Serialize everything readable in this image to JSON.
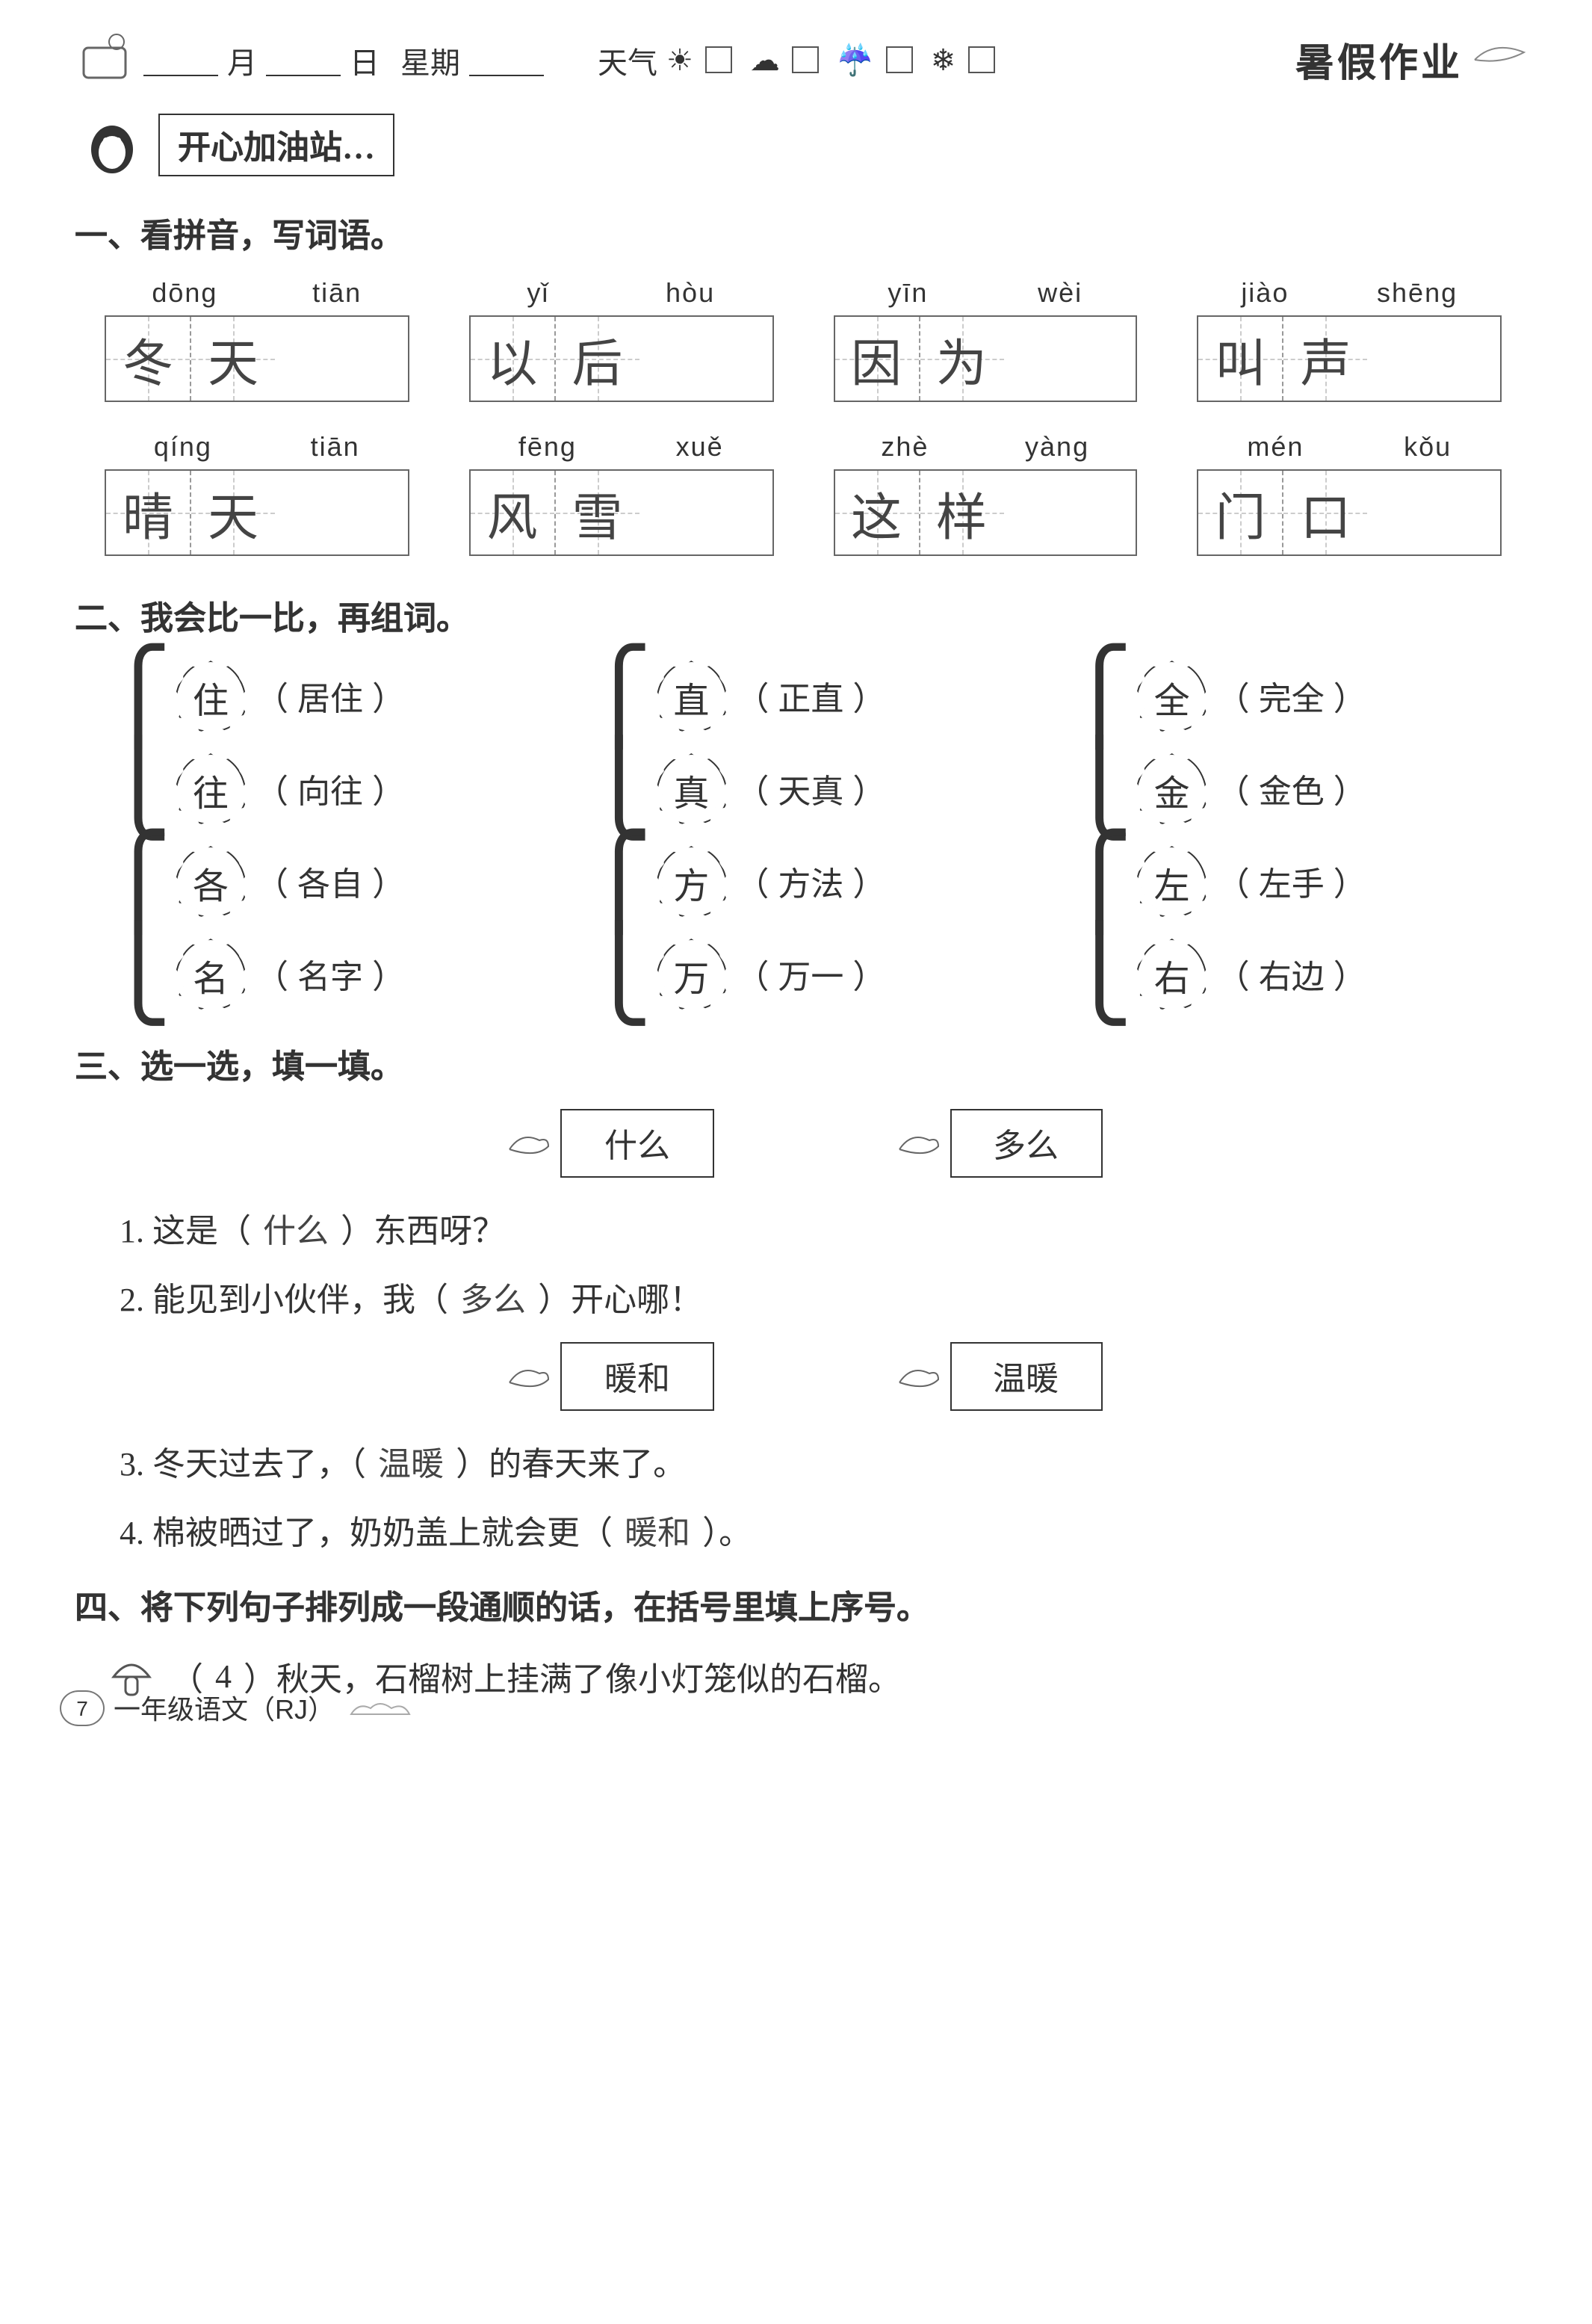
{
  "header": {
    "month_label": "月",
    "day_label": "日",
    "week_label": "星期",
    "weather_label": "天气",
    "title_badge": "暑假作业"
  },
  "section_header": "开心加油站…",
  "s1": {
    "title": "一、看拼音，写词语。",
    "items": [
      {
        "pinyin": [
          "dōng",
          "tiān"
        ],
        "chars": [
          "冬",
          "天"
        ]
      },
      {
        "pinyin": [
          "yǐ",
          "hòu"
        ],
        "chars": [
          "以",
          "后"
        ]
      },
      {
        "pinyin": [
          "yīn",
          "wèi"
        ],
        "chars": [
          "因",
          "为"
        ]
      },
      {
        "pinyin": [
          "jiào",
          "shēng"
        ],
        "chars": [
          "叫",
          "声"
        ]
      },
      {
        "pinyin": [
          "qíng",
          "tiān"
        ],
        "chars": [
          "晴",
          "天"
        ]
      },
      {
        "pinyin": [
          "fēng",
          "xuě"
        ],
        "chars": [
          "风",
          "雪"
        ]
      },
      {
        "pinyin": [
          "zhè",
          "yàng"
        ],
        "chars": [
          "这",
          "样"
        ]
      },
      {
        "pinyin": [
          "mén",
          "kǒu"
        ],
        "chars": [
          "门",
          "口"
        ]
      }
    ]
  },
  "s2": {
    "title": "二、我会比一比，再组词。",
    "pairs": [
      {
        "char": "住",
        "word": "居住"
      },
      {
        "char": "直",
        "word": "正直"
      },
      {
        "char": "全",
        "word": "完全"
      },
      {
        "char": "往",
        "word": "向往"
      },
      {
        "char": "真",
        "word": "天真"
      },
      {
        "char": "金",
        "word": "金色"
      },
      {
        "char": "各",
        "word": "各自"
      },
      {
        "char": "方",
        "word": "方法"
      },
      {
        "char": "左",
        "word": "左手"
      },
      {
        "char": "名",
        "word": "名字"
      },
      {
        "char": "万",
        "word": "万一"
      },
      {
        "char": "右",
        "word": "右边"
      }
    ]
  },
  "s3": {
    "title": "三、选一选，填一填。",
    "choices1": [
      "什么",
      "多么"
    ],
    "q1": {
      "pre": "1. 这是（",
      "ans": "什么",
      "post": "）东西呀？"
    },
    "q2": {
      "pre": "2. 能见到小伙伴，我（",
      "ans": "多么",
      "post": "）开心哪！"
    },
    "choices2": [
      "暖和",
      "温暖"
    ],
    "q3": {
      "pre": "3. 冬天过去了，（",
      "ans": "温暖",
      "post": "）的春天来了。"
    },
    "q4": {
      "pre": "4. 棉被晒过了，奶奶盖上就会更（",
      "ans": "暖和",
      "post": "）。"
    }
  },
  "s4": {
    "title": "四、将下列句子排列成一段通顺的话，在括号里填上序号。",
    "line1": {
      "num": "4",
      "text": "）秋天，石榴树上挂满了像小灯笼似的石榴。",
      "pre": "（"
    }
  },
  "footer": {
    "page": "7",
    "text": "一年级语文（RJ）"
  }
}
